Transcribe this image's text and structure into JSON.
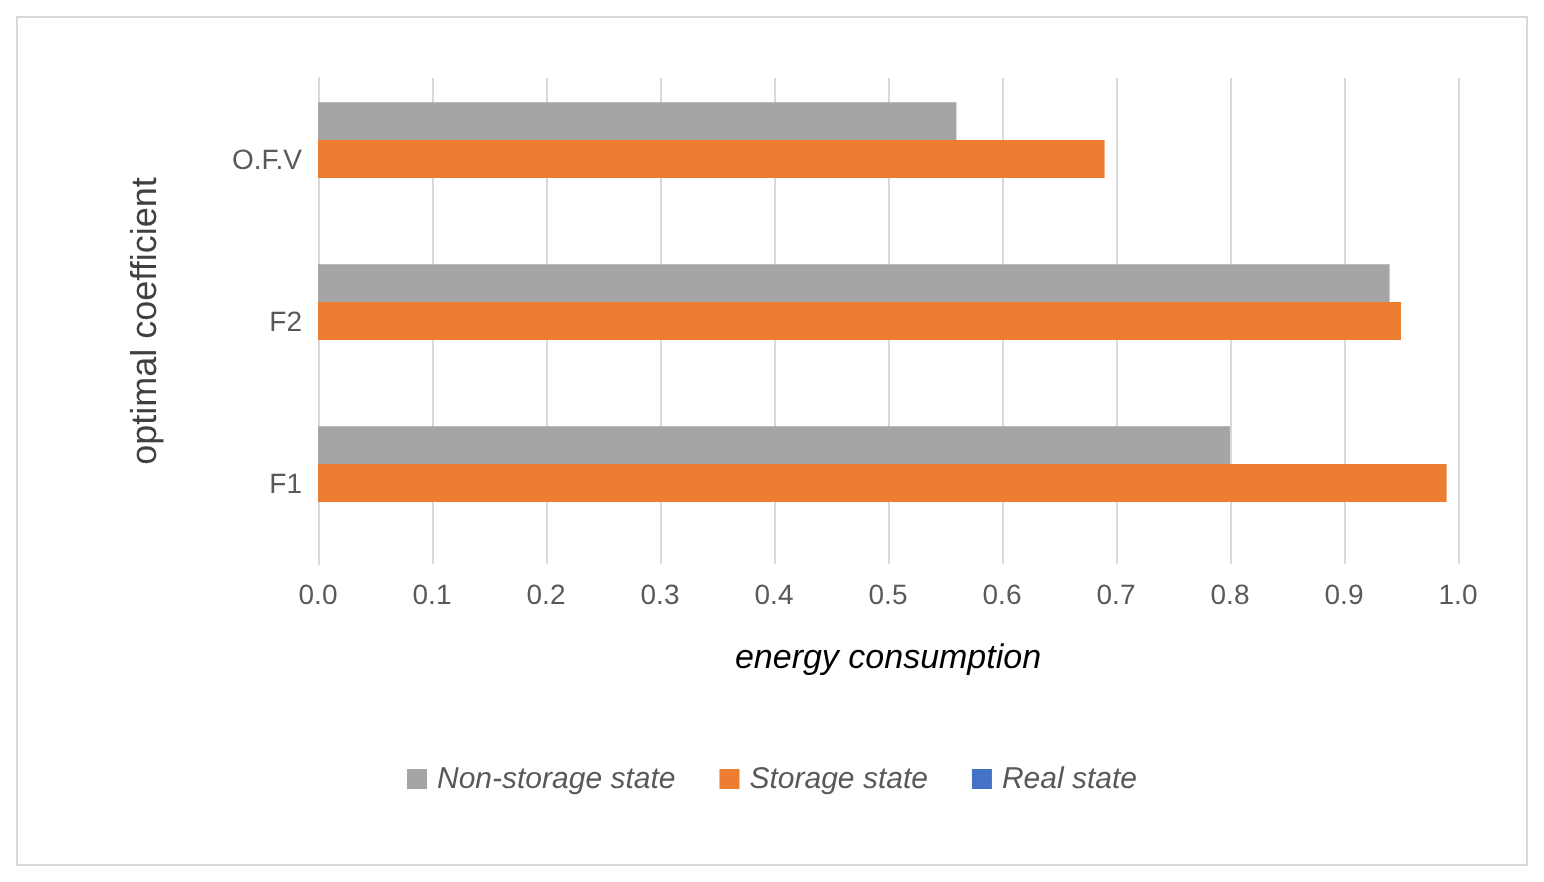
{
  "chart_data": {
    "type": "bar",
    "orientation": "horizontal",
    "xlabel": "energy consumption",
    "ylabel": "optimal coefficient",
    "categories": [
      "O.F.V",
      "F2",
      "F1"
    ],
    "series": [
      {
        "name": "Non-storage state",
        "color": "#a5a5a5",
        "values": [
          0.56,
          0.94,
          0.8
        ]
      },
      {
        "name": "Storage state",
        "color": "#ed7d31",
        "values": [
          0.69,
          0.95,
          0.99
        ]
      },
      {
        "name": "Real state",
        "color": "#4472c4",
        "values": [
          null,
          null,
          null
        ]
      }
    ],
    "xlim": [
      0,
      1
    ],
    "xticks": [
      {
        "value": 0,
        "label": "0.0"
      },
      0.1,
      0.2,
      0.3,
      0.4,
      0.5,
      0.6,
      0.7,
      0.8,
      0.9,
      {
        "value": 1,
        "label": "1.0"
      }
    ],
    "grid": "x",
    "legend": "bottom"
  }
}
